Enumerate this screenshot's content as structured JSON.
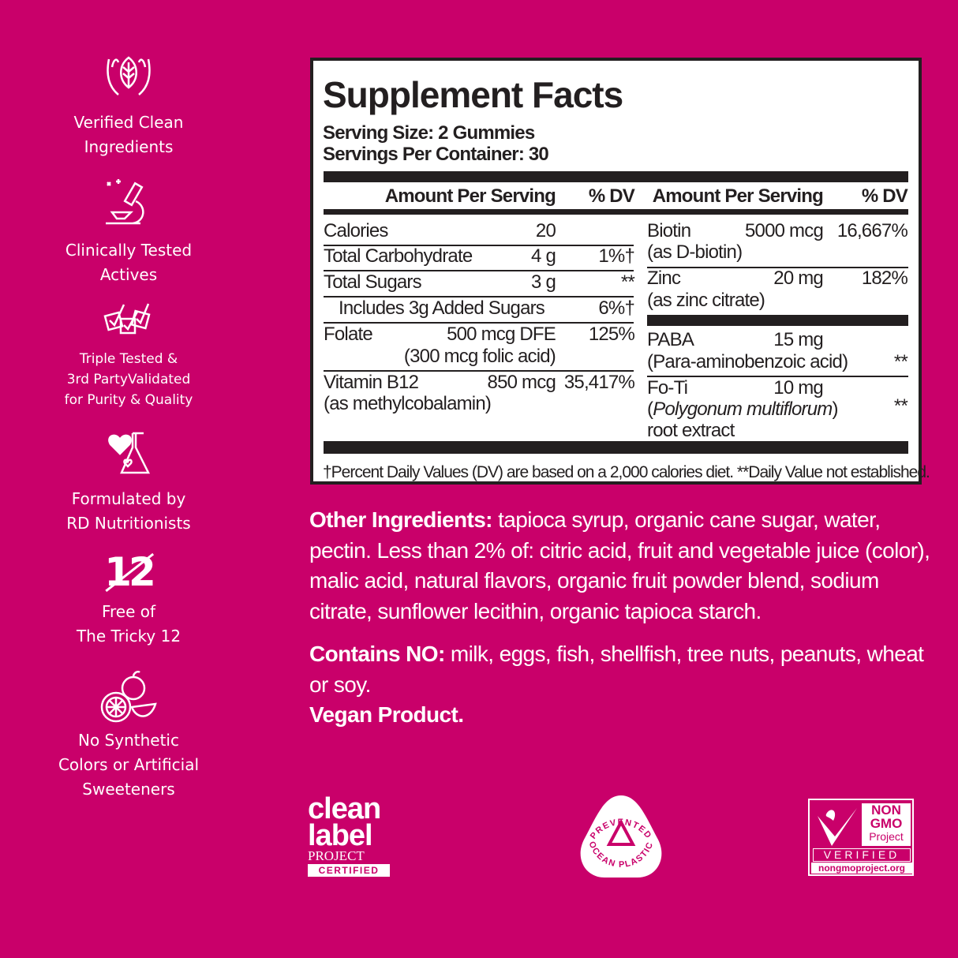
{
  "background_color": "#c9006a",
  "sidebar": [
    {
      "icon": "hands-leaf-icon",
      "lines": [
        "Verified Clean",
        "Ingredients"
      ]
    },
    {
      "icon": "microscope-icon",
      "lines": [
        "Clinically Tested",
        "Actives"
      ]
    },
    {
      "icon": "checkmarks-icon",
      "lines": [
        "Triple Tested &",
        "3rd PartyValidated",
        "for Purity & Quality"
      ]
    },
    {
      "icon": "heart-flask-icon",
      "lines": [
        "Formulated by",
        "RD Nutritionists"
      ]
    },
    {
      "icon": "crossed-12-icon",
      "icon_text": "12",
      "lines": [
        "Free of",
        "The Tricky 12"
      ]
    },
    {
      "icon": "fruit-icon",
      "lines": [
        "No Synthetic",
        "Colors or Artificial",
        "Sweeteners"
      ]
    }
  ],
  "facts": {
    "title": "Supplement Facts",
    "serving_size": "Serving Size: 2 Gummies",
    "servings_per_container": "Servings Per Container: 30",
    "header_amount": "Amount Per Serving",
    "header_dv": "% DV",
    "left": [
      {
        "name": "Calories",
        "amount": "20",
        "dv": ""
      },
      {
        "name": "Total Carbohydrate",
        "amount": "4 g",
        "dv": "1%†"
      },
      {
        "name": "Total Sugars",
        "amount": "3 g",
        "dv": "**"
      },
      {
        "name": "Includes 3g Added Sugars",
        "amount": "",
        "dv": "6%†"
      },
      {
        "name": "Folate",
        "amount": "500 mcg DFE",
        "sub": "(300 mcg folic acid)",
        "dv": "125%"
      },
      {
        "name": "Vitamin B12",
        "amount": "850 mcg",
        "sub": "(as methylcobalamin)",
        "dv": "35,417%"
      }
    ],
    "right": [
      {
        "name": "Biotin",
        "amount": "5000 mcg",
        "sub": "(as D-biotin)",
        "dv": "16,667%"
      },
      {
        "name": "Zinc",
        "amount": "20 mg",
        "sub": "(as zinc citrate)",
        "dv": "182%"
      },
      {
        "name": "PABA",
        "amount": "15 mg",
        "sub": "(Para-aminobenzoic acid)",
        "dv": "**"
      },
      {
        "name": "Fo-Ti",
        "amount": "10 mg",
        "sub_italic": "Polygonum multiflorum",
        "sub_open": "(",
        "sub_close": ")",
        "sub2": "root extract",
        "dv": "**"
      }
    ],
    "footnote": "†Percent Daily Values (DV) are based on a 2,000 calories diet. **Daily Value not established."
  },
  "other_ingredients": {
    "label": "Other Ingredients:",
    "text": " tapioca syrup, organic cane sugar, water, pectin. Less than 2% of: citric acid, fruit and vegetable juice (color), malic acid, natural flavors, organic fruit powder blend, sodium citrate, sunflower lecithin, organic tapioca starch."
  },
  "contains": {
    "label": "Contains NO:",
    "text": " milk, eggs, fish, shellfish, tree nuts, peanuts, wheat or soy."
  },
  "vegan": "Vegan Product.",
  "badges": {
    "clean_label": {
      "l1": "clean",
      "l2": "label",
      "l3": "PROJECT",
      "l4": "CERTIFIED"
    },
    "ocean": {
      "top": "PREVENTED",
      "bottom": "OCEAN PLASTIC"
    },
    "nongmo": {
      "l1": "NON",
      "l2": "GMO",
      "l3": "Project",
      "l4": "VERIFIED",
      "l5": "nongmoproject.org"
    }
  }
}
